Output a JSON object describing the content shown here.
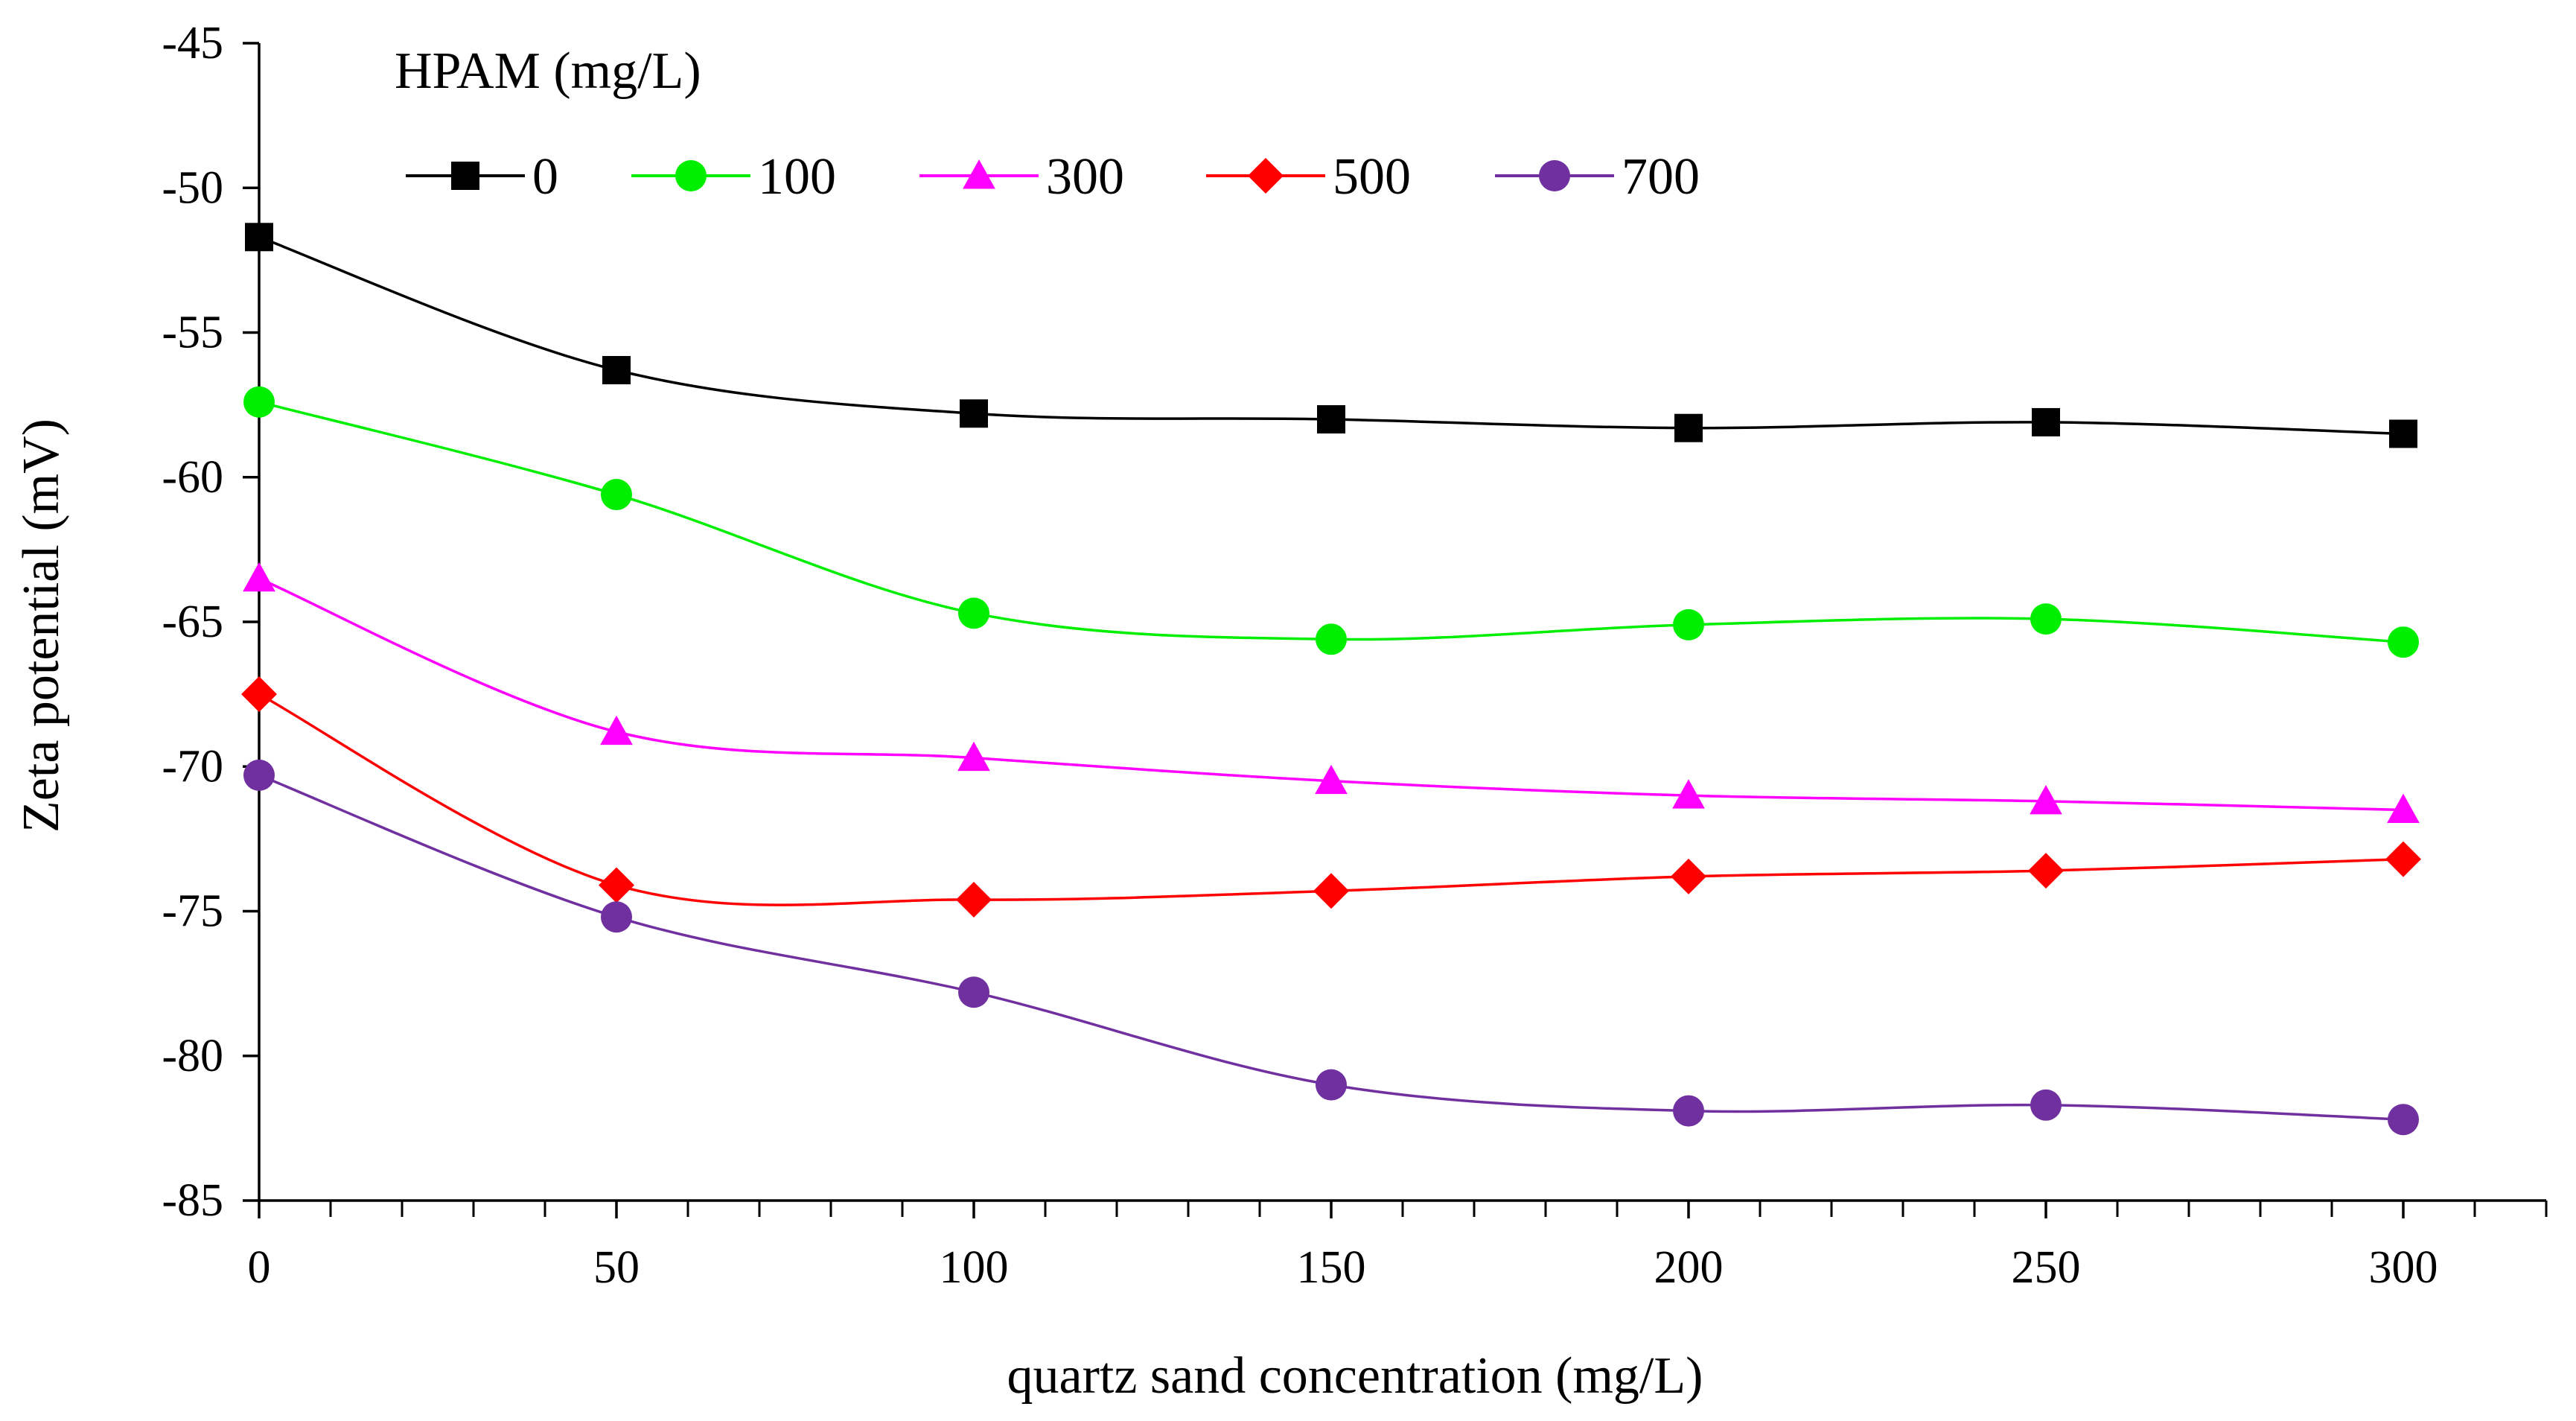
{
  "chart_data": {
    "type": "line",
    "title": "",
    "xlabel": "quartz sand concentration (mg/L)",
    "ylabel": "Zeta potential (mV)",
    "xlim": [
      0,
      320
    ],
    "ylim": [
      -85,
      -45
    ],
    "xticks": [
      0,
      50,
      100,
      150,
      200,
      250,
      300
    ],
    "yticks": [
      -45,
      -50,
      -55,
      -60,
      -65,
      -70,
      -75,
      -80,
      -85
    ],
    "x_minor_step": 10,
    "grid": false,
    "legend_title": "HPAM (mg/L)",
    "legend_position": "top-left",
    "x": [
      0,
      50,
      100,
      150,
      200,
      250,
      300
    ],
    "series": [
      {
        "name": "0",
        "color": "#000000",
        "marker": "square",
        "values": [
          -51.7,
          -56.3,
          -57.8,
          -58.0,
          -58.3,
          -58.1,
          -58.5
        ]
      },
      {
        "name": "100",
        "color": "#00ee00",
        "marker": "circle",
        "values": [
          -57.4,
          -60.6,
          -64.7,
          -65.6,
          -65.1,
          -64.9,
          -65.7
        ]
      },
      {
        "name": "300",
        "color": "#ff00ff",
        "marker": "triangle",
        "values": [
          -63.5,
          -68.8,
          -69.7,
          -70.5,
          -71.0,
          -71.2,
          -71.5
        ]
      },
      {
        "name": "500",
        "color": "#ff0000",
        "marker": "diamond",
        "values": [
          -67.5,
          -74.1,
          -74.6,
          -74.3,
          -73.8,
          -73.6,
          -73.2
        ]
      },
      {
        "name": "700",
        "color": "#7030a0",
        "marker": "circle",
        "values": [
          -70.3,
          -75.2,
          -77.8,
          -81.0,
          -81.9,
          -81.7,
          -82.2
        ]
      }
    ]
  }
}
